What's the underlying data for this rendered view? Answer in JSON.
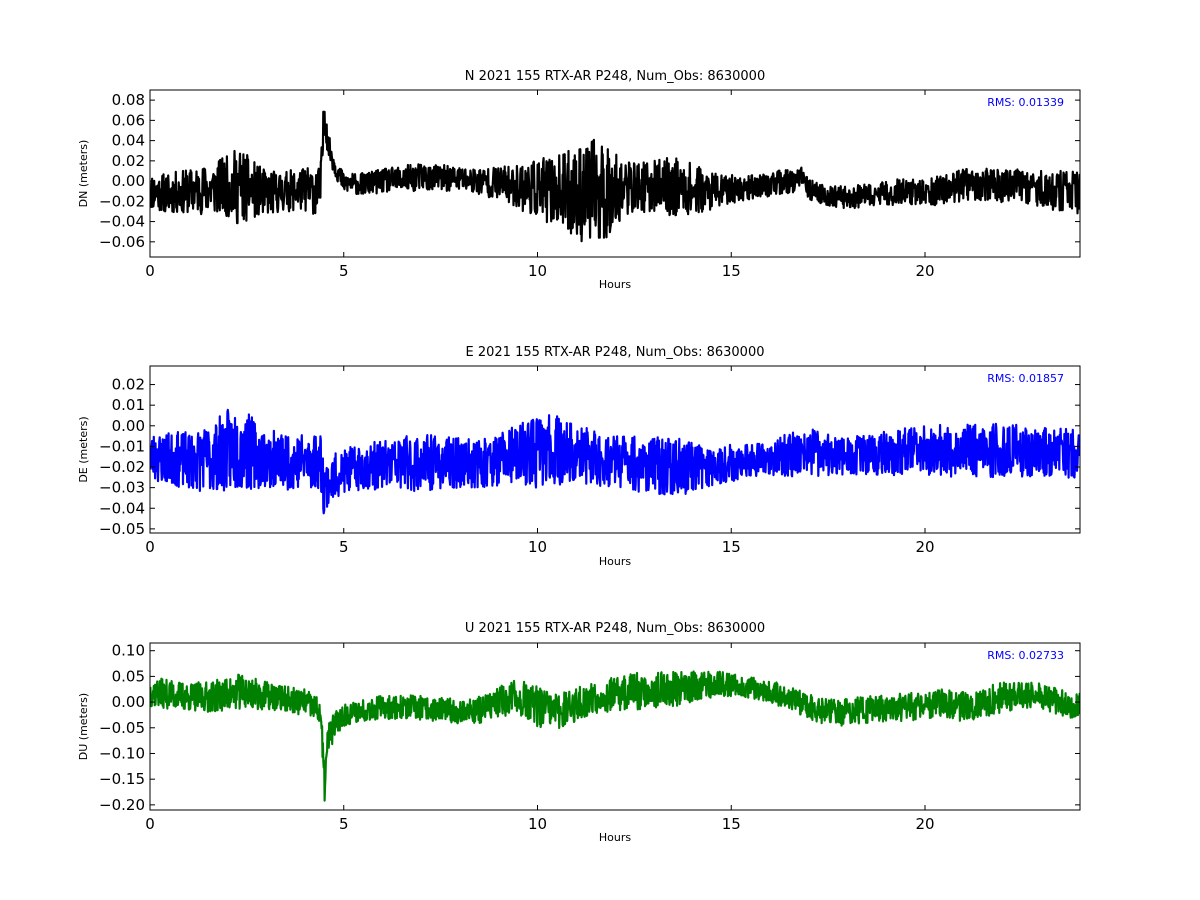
{
  "chart_data": [
    {
      "type": "line",
      "title": "N 2021 155 RTX-AR  P248, Num_Obs: 8630000",
      "xlabel": "Hours",
      "ylabel": "DN (meters)",
      "xlim": [
        0,
        24
      ],
      "ylim": [
        -0.075,
        0.09
      ],
      "xticks": [
        0,
        5,
        10,
        15,
        20
      ],
      "xtick_labels": [
        "0",
        "5",
        "10",
        "15",
        "20"
      ],
      "yticks": [
        -0.06,
        -0.04,
        -0.02,
        0.0,
        0.02,
        0.04,
        0.06,
        0.08
      ],
      "ytick_labels": [
        "−0.06",
        "−0.04",
        "−0.02",
        "0.00",
        "0.02",
        "0.04",
        "0.06",
        "0.08"
      ],
      "annotation": "RMS:  0.01339",
      "annotation_color": "#0000ff",
      "color": "#000000",
      "grid": false,
      "envelope": {
        "x": [
          0,
          0.5,
          1,
          1.5,
          2,
          2.3,
          2.6,
          3,
          3.5,
          4,
          4.4,
          4.5,
          4.6,
          4.8,
          5,
          5.5,
          6,
          6.5,
          7,
          7.5,
          8,
          8.5,
          9,
          9.5,
          10,
          10.5,
          11,
          11.5,
          11.8,
          12,
          12.5,
          13,
          13.5,
          14,
          14.5,
          15,
          15.5,
          16,
          16.5,
          16.8,
          17,
          17.5,
          18,
          18.5,
          19,
          19.5,
          20,
          20.5,
          21,
          21.5,
          22,
          22.5,
          23,
          23.5,
          24
        ],
        "mean": [
          -0.01,
          -0.012,
          -0.01,
          -0.008,
          -0.005,
          -0.005,
          -0.008,
          -0.012,
          -0.01,
          -0.008,
          -0.01,
          0.07,
          0.035,
          0.012,
          -0.002,
          -0.003,
          0.0,
          0.002,
          0.004,
          0.003,
          0.002,
          0.0,
          -0.002,
          -0.005,
          -0.008,
          -0.01,
          -0.012,
          -0.012,
          -0.01,
          -0.008,
          -0.006,
          -0.005,
          -0.005,
          -0.008,
          -0.01,
          -0.008,
          -0.006,
          -0.003,
          0.0,
          0.002,
          -0.008,
          -0.015,
          -0.016,
          -0.015,
          -0.012,
          -0.01,
          -0.012,
          -0.008,
          -0.004,
          -0.003,
          -0.004,
          -0.005,
          -0.008,
          -0.01,
          -0.012
        ],
        "spread": [
          0.018,
          0.02,
          0.022,
          0.025,
          0.03,
          0.04,
          0.03,
          0.022,
          0.02,
          0.022,
          0.025,
          0.02,
          0.012,
          0.01,
          0.01,
          0.011,
          0.012,
          0.013,
          0.014,
          0.013,
          0.013,
          0.014,
          0.016,
          0.022,
          0.03,
          0.035,
          0.045,
          0.055,
          0.05,
          0.035,
          0.025,
          0.025,
          0.03,
          0.025,
          0.018,
          0.014,
          0.012,
          0.012,
          0.012,
          0.012,
          0.01,
          0.01,
          0.011,
          0.012,
          0.012,
          0.013,
          0.013,
          0.015,
          0.016,
          0.016,
          0.017,
          0.016,
          0.018,
          0.02,
          0.021
        ]
      }
    },
    {
      "type": "line",
      "title": "E 2021 155 RTX-AR  P248, Num_Obs: 8630000",
      "xlabel": "Hours",
      "ylabel": "DE (meters)",
      "xlim": [
        0,
        24
      ],
      "ylim": [
        -0.052,
        0.029
      ],
      "xticks": [
        0,
        5,
        10,
        15,
        20
      ],
      "xtick_labels": [
        "0",
        "5",
        "10",
        "15",
        "20"
      ],
      "yticks": [
        -0.05,
        -0.04,
        -0.03,
        -0.02,
        -0.01,
        0.0,
        0.01,
        0.02
      ],
      "ytick_labels": [
        "−0.05",
        "−0.04",
        "−0.03",
        "−0.02",
        "−0.01",
        "0.00",
        "0.01",
        "0.02"
      ],
      "annotation": "RMS:  0.01857",
      "annotation_color": "#0000ff",
      "color": "#0000ff",
      "grid": false,
      "envelope": {
        "x": [
          0,
          0.5,
          1,
          1.5,
          2,
          2.3,
          2.6,
          3,
          3.5,
          4,
          4.4,
          4.5,
          4.6,
          4.8,
          5,
          5.5,
          6,
          6.5,
          7,
          7.5,
          8,
          8.5,
          9,
          9.5,
          10,
          10.5,
          11,
          11.5,
          12,
          12.5,
          13,
          13.5,
          14,
          14.5,
          15,
          15.5,
          16,
          16.5,
          17,
          17.5,
          18,
          18.5,
          19,
          19.5,
          20,
          20.5,
          21,
          21.5,
          22,
          22.5,
          23,
          23.5,
          24
        ],
        "mean": [
          -0.015,
          -0.016,
          -0.017,
          -0.016,
          -0.012,
          -0.01,
          -0.013,
          -0.016,
          -0.017,
          -0.017,
          -0.017,
          -0.03,
          -0.028,
          -0.024,
          -0.022,
          -0.02,
          -0.019,
          -0.018,
          -0.018,
          -0.018,
          -0.018,
          -0.018,
          -0.016,
          -0.014,
          -0.012,
          -0.012,
          -0.014,
          -0.016,
          -0.017,
          -0.018,
          -0.019,
          -0.02,
          -0.02,
          -0.019,
          -0.018,
          -0.017,
          -0.016,
          -0.014,
          -0.013,
          -0.014,
          -0.015,
          -0.014,
          -0.013,
          -0.013,
          -0.012,
          -0.012,
          -0.012,
          -0.012,
          -0.012,
          -0.012,
          -0.013,
          -0.013,
          -0.014
        ],
        "spread": [
          0.012,
          0.013,
          0.014,
          0.016,
          0.02,
          0.022,
          0.018,
          0.014,
          0.014,
          0.014,
          0.014,
          0.015,
          0.012,
          0.011,
          0.011,
          0.011,
          0.012,
          0.013,
          0.014,
          0.013,
          0.012,
          0.012,
          0.013,
          0.015,
          0.018,
          0.017,
          0.015,
          0.014,
          0.014,
          0.014,
          0.014,
          0.015,
          0.012,
          0.01,
          0.009,
          0.008,
          0.008,
          0.011,
          0.012,
          0.01,
          0.009,
          0.01,
          0.011,
          0.012,
          0.012,
          0.013,
          0.013,
          0.013,
          0.013,
          0.013,
          0.012,
          0.012,
          0.012
        ]
      }
    },
    {
      "type": "line",
      "title": "U 2021 155 RTX-AR  P248, Num_Obs: 8630000",
      "xlabel": "Hours",
      "ylabel": "DU (meters)",
      "xlim": [
        0,
        24
      ],
      "ylim": [
        -0.21,
        0.115
      ],
      "xticks": [
        0,
        5,
        10,
        15,
        20
      ],
      "xtick_labels": [
        "0",
        "5",
        "10",
        "15",
        "20"
      ],
      "yticks": [
        -0.2,
        -0.15,
        -0.1,
        -0.05,
        0.0,
        0.05,
        0.1
      ],
      "ytick_labels": [
        "−0.20",
        "−0.15",
        "−0.10",
        "−0.05",
        "0.00",
        "0.05",
        "0.10"
      ],
      "annotation": "RMS:  0.02733",
      "annotation_color": "#0000ff",
      "color": "#008000",
      "grid": false,
      "envelope": {
        "x": [
          0,
          0.5,
          1,
          1.5,
          2,
          2.3,
          2.6,
          3,
          3.5,
          4,
          4.4,
          4.5,
          4.6,
          4.8,
          5,
          5.5,
          6,
          6.5,
          7,
          7.5,
          8,
          8.5,
          9,
          9.5,
          10,
          10.5,
          11,
          11.5,
          12,
          12.5,
          13,
          13.5,
          14,
          14.5,
          15,
          15.5,
          16,
          16.5,
          17,
          17.5,
          18,
          18.5,
          19,
          19.5,
          20,
          20.5,
          21,
          21.5,
          22,
          22.5,
          23,
          23.5,
          24
        ],
        "mean": [
          0.02,
          0.015,
          0.01,
          0.01,
          0.015,
          0.02,
          0.018,
          0.012,
          0.005,
          0.0,
          -0.02,
          -0.16,
          -0.07,
          -0.04,
          -0.025,
          -0.015,
          -0.01,
          -0.01,
          -0.012,
          -0.015,
          -0.018,
          -0.015,
          0.0,
          0.01,
          -0.01,
          -0.02,
          -0.005,
          0.01,
          0.015,
          0.02,
          0.025,
          0.025,
          0.03,
          0.035,
          0.035,
          0.03,
          0.02,
          0.01,
          -0.01,
          -0.02,
          -0.02,
          -0.015,
          -0.01,
          -0.01,
          -0.005,
          0.0,
          -0.01,
          0.0,
          0.01,
          0.015,
          0.01,
          0.0,
          -0.01
        ],
        "spread": [
          0.03,
          0.028,
          0.028,
          0.03,
          0.032,
          0.035,
          0.032,
          0.028,
          0.026,
          0.026,
          0.026,
          0.04,
          0.03,
          0.025,
          0.022,
          0.022,
          0.023,
          0.024,
          0.024,
          0.024,
          0.024,
          0.026,
          0.03,
          0.035,
          0.04,
          0.036,
          0.032,
          0.032,
          0.034,
          0.036,
          0.036,
          0.034,
          0.03,
          0.026,
          0.024,
          0.022,
          0.022,
          0.024,
          0.026,
          0.026,
          0.026,
          0.027,
          0.028,
          0.028,
          0.028,
          0.028,
          0.03,
          0.03,
          0.03,
          0.028,
          0.026,
          0.026,
          0.027
        ]
      }
    }
  ]
}
